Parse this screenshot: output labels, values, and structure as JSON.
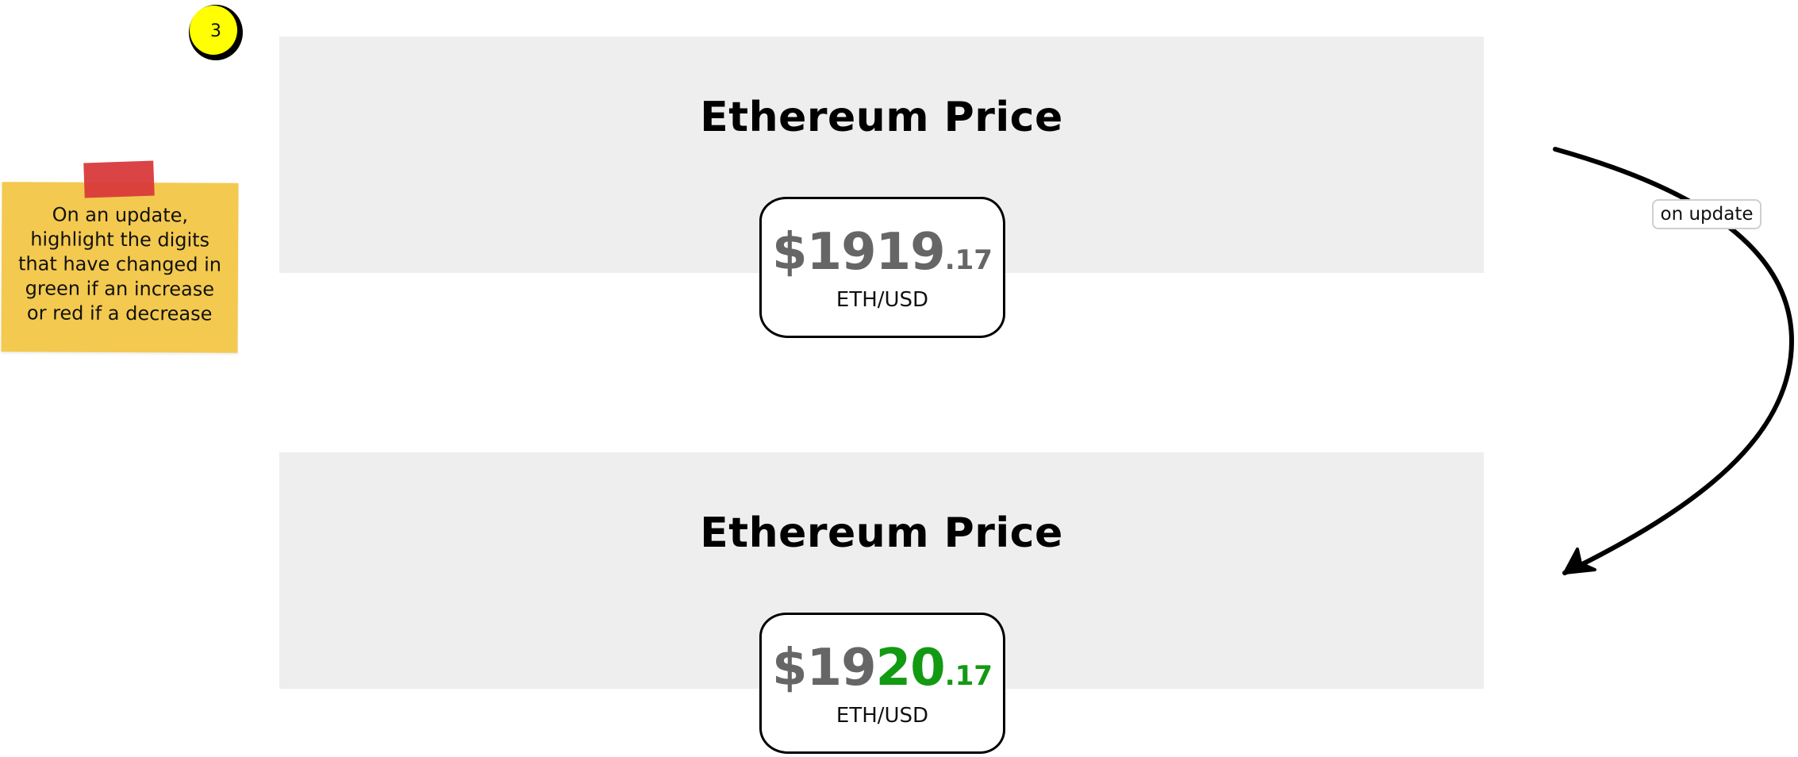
{
  "step": {
    "number": "3"
  },
  "note": {
    "lines": [
      "On an update,",
      "highlight the digits",
      "that have changed in",
      "green if an increase",
      "or red if a decrease"
    ]
  },
  "before": {
    "title": "Ethereum Price",
    "price_symbol": "$",
    "price_unchanged": "1919",
    "price_cents": ".17",
    "pair": "ETH/USD"
  },
  "after": {
    "title": "Ethereum Price",
    "price_symbol": "$",
    "price_unchanged": "19",
    "price_changed": "20",
    "price_cents": ".17",
    "pair": "ETH/USD"
  },
  "transition": {
    "label": "on update"
  },
  "colors": {
    "panel_bg": "#eeeeee",
    "price_gray": "#666666",
    "increase_green": "#129a12",
    "sticky_yellow": "#f3c94f",
    "tape_red": "#d93a3a",
    "badge_yellow": "#ffff00"
  }
}
